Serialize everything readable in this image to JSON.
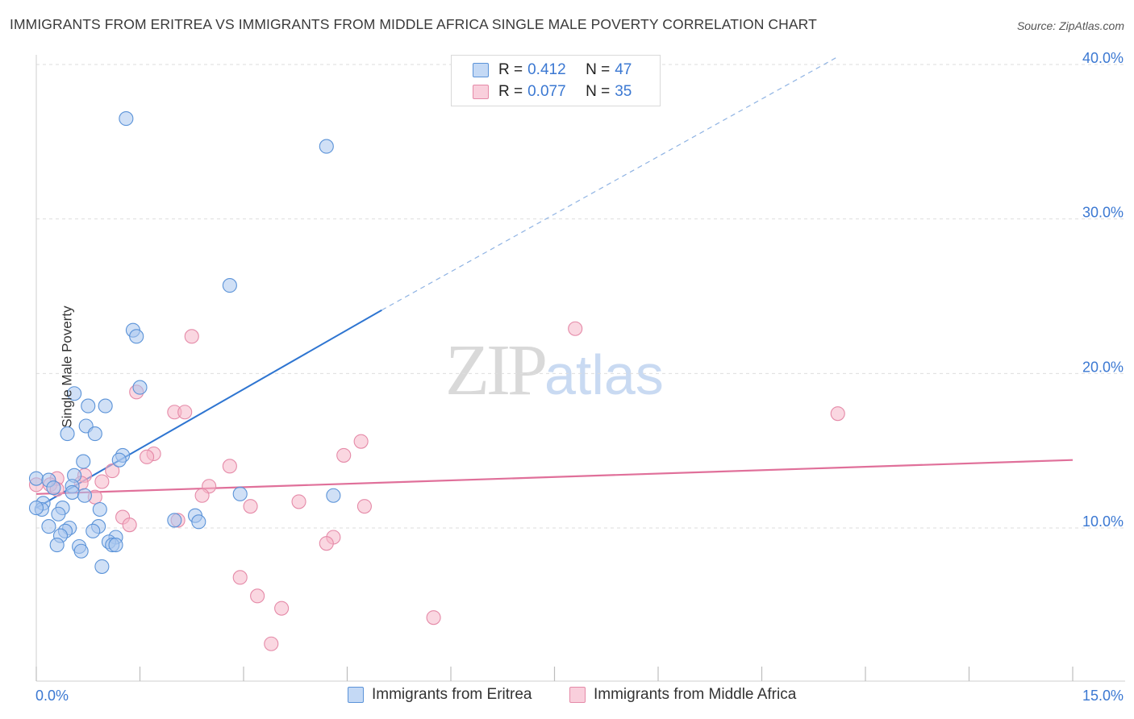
{
  "title": "IMMIGRANTS FROM ERITREA VS IMMIGRANTS FROM MIDDLE AFRICA SINGLE MALE POVERTY CORRELATION CHART",
  "source": "Source: ZipAtlas.com",
  "watermark": {
    "zip": "ZIP",
    "atlas": "atlas"
  },
  "legend": {
    "rows": [
      {
        "r_label": "R =",
        "r_value": "0.412",
        "n_label": "N =",
        "n_value": "47"
      },
      {
        "r_label": "R =",
        "r_value": "0.077",
        "n_label": "N =",
        "n_value": "35"
      }
    ]
  },
  "colors": {
    "eritrea_fill": "#a9c7ef",
    "eritrea_stroke": "#5b93d8",
    "eritrea_line": "#2e75d1",
    "middle_africa_fill": "#f5b6c9",
    "middle_africa_stroke": "#e58aa8",
    "middle_africa_line": "#e0709a",
    "axis_text": "#3b78d2",
    "grid": "#dedede"
  },
  "chart_data": {
    "type": "scatter",
    "title": "IMMIGRANTS FROM ERITREA VS IMMIGRANTS FROM MIDDLE AFRICA SINGLE MALE POVERTY CORRELATION CHART",
    "xlabel": "",
    "ylabel": "Single Male Poverty",
    "xlim": [
      0,
      15
    ],
    "ylim": [
      0,
      40
    ],
    "x_ticks": [
      0,
      15
    ],
    "x_tick_labels": [
      "0.0%",
      "15.0%"
    ],
    "y_ticks": [
      10,
      20,
      30,
      40
    ],
    "y_tick_labels": [
      "10.0%",
      "20.0%",
      "30.0%",
      "40.0%"
    ],
    "grid": true,
    "legend_position": "top-center",
    "series": [
      {
        "name": "Immigrants from Eritrea",
        "r": 0.412,
        "n": 47,
        "trend": {
          "x": [
            0.0,
            5.0
          ],
          "y": [
            11.3,
            24.1
          ],
          "dashed_extension_to": [
            11.6,
            40.5
          ]
        },
        "points": [
          [
            1.3,
            36.5
          ],
          [
            4.2,
            34.7
          ],
          [
            2.8,
            25.7
          ],
          [
            1.4,
            22.8
          ],
          [
            1.45,
            22.4
          ],
          [
            1.5,
            19.1
          ],
          [
            0.55,
            18.7
          ],
          [
            0.75,
            17.9
          ],
          [
            1.0,
            17.9
          ],
          [
            0.72,
            16.6
          ],
          [
            0.85,
            16.1
          ],
          [
            0.45,
            16.1
          ],
          [
            1.25,
            14.7
          ],
          [
            1.2,
            14.4
          ],
          [
            0.68,
            14.3
          ],
          [
            0.55,
            13.4
          ],
          [
            0.0,
            13.2
          ],
          [
            0.18,
            13.1
          ],
          [
            0.52,
            12.7
          ],
          [
            0.25,
            12.6
          ],
          [
            0.52,
            12.3
          ],
          [
            0.7,
            12.1
          ],
          [
            2.95,
            12.2
          ],
          [
            4.3,
            12.1
          ],
          [
            0.1,
            11.6
          ],
          [
            0.08,
            11.2
          ],
          [
            0.38,
            11.3
          ],
          [
            0.92,
            11.2
          ],
          [
            0.32,
            10.9
          ],
          [
            2.3,
            10.8
          ],
          [
            2.0,
            10.5
          ],
          [
            2.35,
            10.4
          ],
          [
            0.18,
            10.1
          ],
          [
            0.9,
            10.1
          ],
          [
            0.48,
            10.0
          ],
          [
            0.42,
            9.8
          ],
          [
            0.82,
            9.8
          ],
          [
            0.35,
            9.5
          ],
          [
            1.15,
            9.4
          ],
          [
            1.05,
            9.1
          ],
          [
            1.1,
            8.9
          ],
          [
            1.15,
            8.9
          ],
          [
            0.3,
            8.9
          ],
          [
            0.62,
            8.8
          ],
          [
            0.65,
            8.5
          ],
          [
            0.95,
            7.5
          ],
          [
            0.0,
            11.3
          ]
        ]
      },
      {
        "name": "Immigrants from Middle Africa",
        "r": 0.077,
        "n": 35,
        "trend": {
          "x": [
            0.0,
            15.0
          ],
          "y": [
            12.2,
            14.4
          ]
        },
        "points": [
          [
            7.8,
            22.9
          ],
          [
            2.25,
            22.4
          ],
          [
            1.45,
            18.8
          ],
          [
            2.0,
            17.5
          ],
          [
            2.15,
            17.5
          ],
          [
            11.6,
            17.4
          ],
          [
            4.7,
            15.6
          ],
          [
            1.7,
            14.8
          ],
          [
            1.6,
            14.6
          ],
          [
            4.45,
            14.7
          ],
          [
            2.8,
            14.0
          ],
          [
            1.1,
            13.7
          ],
          [
            0.3,
            13.2
          ],
          [
            0.7,
            13.4
          ],
          [
            0.2,
            12.8
          ],
          [
            0.65,
            12.9
          ],
          [
            0.95,
            13.0
          ],
          [
            2.5,
            12.7
          ],
          [
            0.3,
            12.5
          ],
          [
            2.4,
            12.1
          ],
          [
            3.8,
            11.7
          ],
          [
            4.75,
            11.4
          ],
          [
            3.1,
            11.4
          ],
          [
            0.85,
            12.0
          ],
          [
            1.25,
            10.7
          ],
          [
            1.35,
            10.2
          ],
          [
            2.05,
            10.5
          ],
          [
            4.3,
            9.4
          ],
          [
            4.2,
            9.0
          ],
          [
            2.95,
            6.8
          ],
          [
            3.2,
            5.6
          ],
          [
            3.55,
            4.8
          ],
          [
            5.75,
            4.2
          ],
          [
            3.4,
            2.5
          ],
          [
            0.0,
            12.8
          ]
        ]
      }
    ]
  },
  "bottom_legend": {
    "items": [
      {
        "label": "Immigrants from Eritrea"
      },
      {
        "label": "Immigrants from Middle Africa"
      }
    ]
  }
}
